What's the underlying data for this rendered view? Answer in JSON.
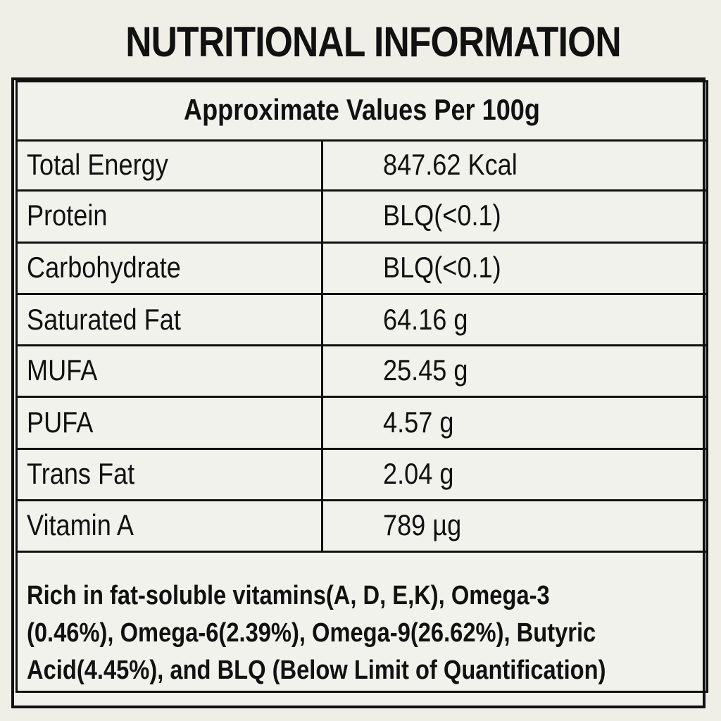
{
  "title": "NUTRITIONAL INFORMATION",
  "subtitle": "Approximate Values Per 100g",
  "rows": [
    {
      "label": "Total Energy",
      "value": "847.62 Kcal"
    },
    {
      "label": "Protein",
      "value": "BLQ(<0.1)"
    },
    {
      "label": "Carbohydrate",
      "value": "BLQ(<0.1)"
    },
    {
      "label": "Saturated Fat",
      "value": "64.16 g"
    },
    {
      "label": "MUFA",
      "value": "25.45 g"
    },
    {
      "label": "PUFA",
      "value": "4.57 g"
    },
    {
      "label": "Trans Fat",
      "value": "2.04 g"
    },
    {
      "label": "Vitamin A",
      "value": "789 µg"
    }
  ],
  "note_lines": [
    "Rich in fat-soluble vitamins(A, D, E,K), Omega-3",
    "(0.46%), Omega-6(2.39%), Omega-9(26.62%), Butyric",
    "Acid(4.45%), and BLQ (Below Limit of Quantification)"
  ]
}
